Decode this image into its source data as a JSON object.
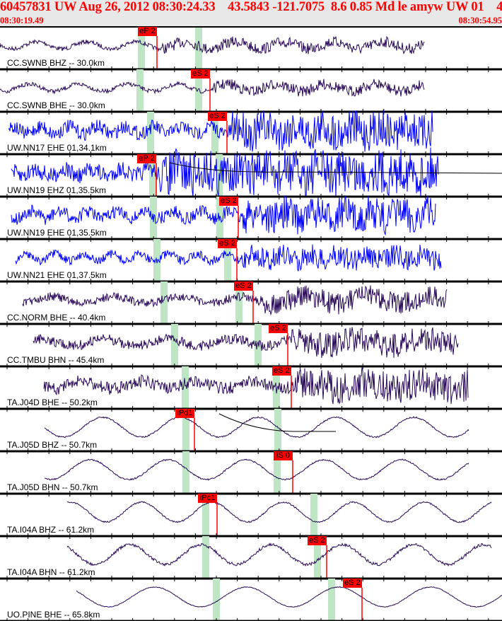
{
  "header": {
    "title": "60457831 UW Aug 26, 2012 08:30:24.33    43.5843 -121.7075  8.6 0.85 Md le amyw UW 01    4",
    "start_time": "08:30:19.49",
    "end_time": "08:30:54.95"
  },
  "colors": {
    "title": "#ff0000",
    "pick": "#ff0000",
    "trace_uw": "#0000ff",
    "trace_other": "#2a0a5a",
    "window": "#bfe6c4"
  },
  "traces": [
    {
      "label": "CC.SWNB BHZ -- 30.0km",
      "pick": "eP 2"
    },
    {
      "label": "CC.SWNB BHE -- 30.0km",
      "pick": "eS 2"
    },
    {
      "label": "UW.NN17 EHE 01,34.1km",
      "pick": "eS 2"
    },
    {
      "label": "UW.NN19 EHZ 01,35.5km",
      "pick": "eP 2"
    },
    {
      "label": "UW.NN19 EHE 01,35.5km",
      "pick": "eS 2"
    },
    {
      "label": "UW.NN21 EHE 01,37.5km",
      "pick": "eS 2"
    },
    {
      "label": "CC.NORM BHE -- 40.4km",
      "pick": "eS 2"
    },
    {
      "label": "CC.TMBU BHN -- 45.4km",
      "pick": "eS 2"
    },
    {
      "label": "TA.J04D BHE -- 50.2km",
      "pick": "eS 2"
    },
    {
      "label": "TA.J05D BHZ -- 50.7km",
      "pick": "iPd1"
    },
    {
      "label": "TA.J05D BHN -- 50.7km",
      "pick": "iS 0"
    },
    {
      "label": "TA.I04A BHZ -- 61.2km",
      "pick": "iPc1"
    },
    {
      "label": "TA.I04A BHN -- 61.2km",
      "pick": "eS 2"
    },
    {
      "label": "UO.PINE BHE -- 65.8km",
      "pick": "eS 2"
    }
  ]
}
